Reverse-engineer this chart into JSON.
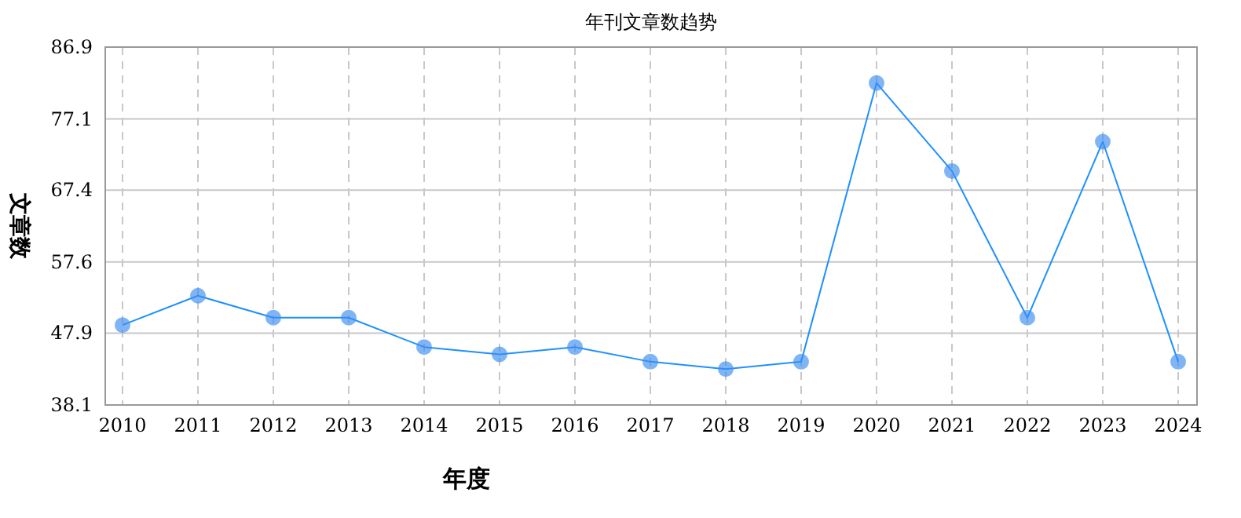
{
  "chart_data": {
    "type": "line",
    "title": "年刊文章数趋势",
    "xlabel": "年度",
    "ylabel": "文章数",
    "categories": [
      "2010",
      "2011",
      "2012",
      "2013",
      "2014",
      "2015",
      "2016",
      "2017",
      "2018",
      "2019",
      "2020",
      "2021",
      "2022",
      "2023",
      "2024"
    ],
    "series": [
      {
        "color": "#1e90ff",
        "values": [
          49,
          53,
          50,
          50,
          46,
          45,
          46,
          44,
          43,
          44,
          82,
          70,
          50,
          74,
          44
        ]
      }
    ],
    "ylim": [
      38.1,
      86.9
    ],
    "yticks": [
      38.1,
      47.9,
      57.6,
      67.4,
      77.1,
      86.9
    ],
    "grid": true,
    "marker": "circle",
    "line_style": "solid"
  }
}
